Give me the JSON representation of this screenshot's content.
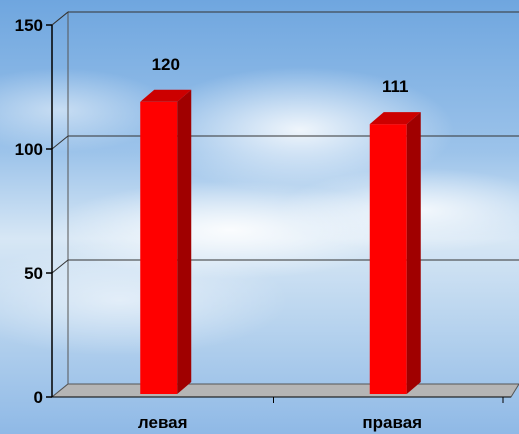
{
  "chart_data": {
    "type": "bar",
    "categories": [
      "левая",
      "правая"
    ],
    "values": [
      120,
      111
    ],
    "data_labels": [
      "120",
      "111"
    ],
    "y_ticks": [
      "0",
      "50",
      "100",
      "150"
    ],
    "ylim": [
      0,
      150
    ],
    "grid": true,
    "bar_color": "#ff0000",
    "bar_side_color": "#a00000",
    "bar_top_color": "#cc0000"
  }
}
